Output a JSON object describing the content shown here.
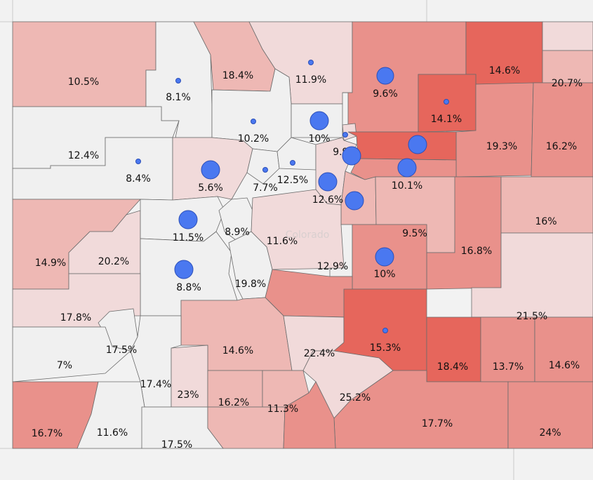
{
  "map": {
    "state_label": "Colorado",
    "colors": {
      "background": "#ececec",
      "outside": "#f2f2f2",
      "border": "#6b6b6b",
      "bubble": "#4a78f0",
      "scale": [
        "#f0f0f0",
        "#f1dada",
        "#eeb8b4",
        "#e9918b",
        "#e6665c"
      ]
    },
    "counties": [
      {
        "id": "moffat",
        "label": "10.5%",
        "level": 2
      },
      {
        "id": "routt",
        "label": "8.1%",
        "level": 0
      },
      {
        "id": "jackson",
        "label": "18.4%",
        "level": 2
      },
      {
        "id": "larimer",
        "label": "11.9%",
        "level": 1
      },
      {
        "id": "weld",
        "label": "9.6%",
        "level": 3
      },
      {
        "id": "logan",
        "label": "14.6%",
        "level": 4
      },
      {
        "id": "sedgwick",
        "label": "",
        "level": 1
      },
      {
        "id": "phillips",
        "label": "20.7%",
        "level": 2
      },
      {
        "id": "morgan",
        "label": "14.1%",
        "level": 4
      },
      {
        "id": "washington",
        "label": "19.3%",
        "level": 3
      },
      {
        "id": "yuma",
        "label": "16.2%",
        "level": 3
      },
      {
        "id": "rio-blanco",
        "label": "12.4%",
        "level": 0
      },
      {
        "id": "garfield",
        "label": "8.4%",
        "level": 0
      },
      {
        "id": "grand",
        "label": "10.2%",
        "level": 0
      },
      {
        "id": "boulder",
        "label": "10%",
        "level": 0
      },
      {
        "id": "broomfield",
        "label": "9.9%",
        "level": 1
      },
      {
        "id": "adams",
        "label": "",
        "level": 4
      },
      {
        "id": "eagle",
        "label": "5.6%",
        "level": 1
      },
      {
        "id": "summit",
        "label": "7.7%",
        "level": 0
      },
      {
        "id": "clear-creek",
        "label": "12.5%",
        "level": 0
      },
      {
        "id": "jefferson",
        "label": "12.6%",
        "level": 1
      },
      {
        "id": "arapahoe",
        "label": "10.1%",
        "level": 3
      },
      {
        "id": "douglas",
        "label": "",
        "level": 2
      },
      {
        "id": "elbert",
        "label": "9.5%",
        "level": 2
      },
      {
        "id": "lincoln",
        "label": "16.8%",
        "level": 3
      },
      {
        "id": "kit-carson",
        "label": "16%",
        "level": 2
      },
      {
        "id": "mesa",
        "label": "14.9%",
        "level": 2
      },
      {
        "id": "delta",
        "label": "20.2%",
        "level": 1
      },
      {
        "id": "pitkin",
        "label": "11.5%",
        "level": 0
      },
      {
        "id": "gunnison",
        "label": "8.8%",
        "level": 0
      },
      {
        "id": "lake",
        "label": "8.9%",
        "level": 0
      },
      {
        "id": "park",
        "label": "11.6%",
        "level": 1
      },
      {
        "id": "teller",
        "label": "12.9%",
        "level": 0
      },
      {
        "id": "el-paso",
        "label": "10%",
        "level": 3
      },
      {
        "id": "chaffee",
        "label": "19.8%",
        "level": 0
      },
      {
        "id": "fremont",
        "label": "",
        "level": 3
      },
      {
        "id": "cheyenne",
        "label": "21.5%",
        "level": 1
      },
      {
        "id": "montrose",
        "label": "17.8%",
        "level": 1
      },
      {
        "id": "ouray",
        "label": "17.5%",
        "level": 0
      },
      {
        "id": "san-miguel",
        "label": "7%",
        "level": 0
      },
      {
        "id": "saguache",
        "label": "14.6%",
        "level": 2
      },
      {
        "id": "custer",
        "label": "22.4%",
        "level": 1
      },
      {
        "id": "pueblo",
        "label": "15.3%",
        "level": 4
      },
      {
        "id": "crowley",
        "label": "18.4%",
        "level": 4
      },
      {
        "id": "kiowa",
        "label": "13.7%",
        "level": 3
      },
      {
        "id": "prowers",
        "label": "14.6%",
        "level": 3
      },
      {
        "id": "hinsdale",
        "label": "17.4%",
        "level": 0
      },
      {
        "id": "mineral",
        "label": "23%",
        "level": 1
      },
      {
        "id": "rio-grande",
        "label": "16.2%",
        "level": 2
      },
      {
        "id": "alamosa",
        "label": "11.3%",
        "level": 2
      },
      {
        "id": "huerfano",
        "label": "25.2%",
        "level": 1
      },
      {
        "id": "otero",
        "label": "17.7%",
        "level": 3
      },
      {
        "id": "baca",
        "label": "24%",
        "level": 3
      },
      {
        "id": "montezuma",
        "label": "16.7%",
        "level": 3
      },
      {
        "id": "la-plata",
        "label": "11.6%",
        "level": 0
      },
      {
        "id": "archuleta",
        "label": "17.5%",
        "level": 0
      },
      {
        "id": "conejos",
        "label": "",
        "level": 2
      },
      {
        "id": "costilla",
        "label": "",
        "level": 3
      },
      {
        "id": "las-animas",
        "label": "",
        "level": 3
      }
    ],
    "bubbles": [
      {
        "id": "routt-bubble",
        "size": 1
      },
      {
        "id": "larimer-bubble",
        "size": 1
      },
      {
        "id": "weld-bubble",
        "size": 3
      },
      {
        "id": "morgan-bubble",
        "size": 1
      },
      {
        "id": "grand-bubble",
        "size": 1
      },
      {
        "id": "boulder-bubble",
        "size": 4
      },
      {
        "id": "broomfield-bubble",
        "size": 1
      },
      {
        "id": "adams-bubble-a",
        "size": 4
      },
      {
        "id": "adams-bubble-b",
        "size": 4
      },
      {
        "id": "garfield-bubble",
        "size": 1
      },
      {
        "id": "eagle-bubble",
        "size": 4
      },
      {
        "id": "summit-bubble",
        "size": 1
      },
      {
        "id": "clear-creek-bubble",
        "size": 1
      },
      {
        "id": "jefferson-bubble",
        "size": 4
      },
      {
        "id": "arapahoe-bubble",
        "size": 4
      },
      {
        "id": "douglas-bubble",
        "size": 4
      },
      {
        "id": "pitkin-bubble",
        "size": 4
      },
      {
        "id": "gunnison-bubble",
        "size": 4
      },
      {
        "id": "el-paso-bubble",
        "size": 4
      },
      {
        "id": "pueblo-bubble",
        "size": 1
      }
    ]
  }
}
